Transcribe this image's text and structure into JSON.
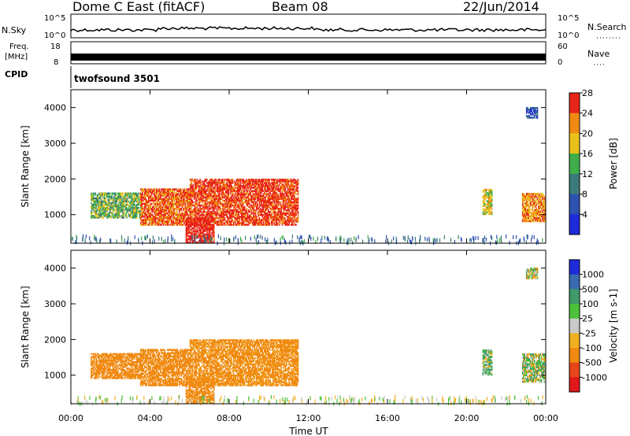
{
  "header": {
    "station": "Dome C East (fitACF)",
    "beam": "Beam 08",
    "date": "22/Jun/2014"
  },
  "noise_panel": {
    "left_label": "N.Sky",
    "right_label": "N.Search",
    "left_ticks": [
      "10^5",
      "10^0"
    ],
    "right_ticks": [
      "10^5",
      "10^0"
    ]
  },
  "freq_panel": {
    "left_label_line1": "Freq.",
    "left_label_line2": "[MHz]",
    "left_ticks": [
      "18",
      "8"
    ],
    "right_label": "Nave",
    "right_ticks": [
      "60",
      "0"
    ]
  },
  "cpid": {
    "label": "CPID",
    "value": "twofsound 3501"
  },
  "chart_data": [
    {
      "type": "heatmap",
      "title": "",
      "ylabel": "Slant Range [km]",
      "xlabel": "Time UT",
      "x_range_hours": [
        0,
        24
      ],
      "ylim": [
        200,
        4500
      ],
      "yticks": [
        "1000",
        "2000",
        "3000",
        "4000"
      ],
      "colorbar": {
        "label": "Power [dB]",
        "ticks": [
          "4",
          "8",
          "12",
          "16",
          "20",
          "24",
          "28"
        ],
        "colors": [
          "#1e2bd8",
          "#2e52b0",
          "#3b7a7a",
          "#3fae4a",
          "#e8c21a",
          "#f08a12",
          "#e8251a"
        ]
      },
      "echo_regions": [
        {
          "t_start": 1.0,
          "t_end": 3.5,
          "r_min": 900,
          "r_max": 1600,
          "value": 14
        },
        {
          "t_start": 3.5,
          "t_end": 6.0,
          "r_min": 700,
          "r_max": 1700,
          "value": 24
        },
        {
          "t_start": 6.0,
          "t_end": 11.5,
          "r_min": 700,
          "r_max": 2000,
          "value": 26
        },
        {
          "t_start": 5.8,
          "t_end": 7.2,
          "r_min": 200,
          "r_max": 900,
          "value": 28
        },
        {
          "t_start": 20.8,
          "t_end": 21.3,
          "r_min": 1000,
          "r_max": 1700,
          "value": 18
        },
        {
          "t_start": 22.8,
          "t_end": 24.0,
          "r_min": 800,
          "r_max": 1600,
          "value": 22
        },
        {
          "t_start": 23.0,
          "t_end": 23.6,
          "r_min": 3700,
          "r_max": 4000,
          "value": 6
        }
      ]
    },
    {
      "type": "heatmap",
      "title": "",
      "ylabel": "Slant Range [km]",
      "xlabel": "Time UT",
      "x_range_hours": [
        0,
        24
      ],
      "ylim": [
        200,
        4500
      ],
      "yticks": [
        "1000",
        "2000",
        "3000",
        "4000"
      ],
      "xticks": [
        "00:00",
        "04:00",
        "08:00",
        "12:00",
        "16:00",
        "20:00",
        "00:00"
      ],
      "colorbar": {
        "label": "Velocity [m s-1]",
        "ticks": [
          "1000",
          "500",
          "100",
          "25",
          "-25",
          "-100",
          "-500",
          "-1000"
        ],
        "colors": [
          "#1e2bd8",
          "#3a6bb0",
          "#3f9a6a",
          "#4cc23a",
          "#c9c9c9",
          "#f0b020",
          "#f08a12",
          "#e8451a",
          "#e01818"
        ]
      },
      "echo_regions": [
        {
          "t_start": 1.0,
          "t_end": 3.5,
          "r_min": 900,
          "r_max": 1600,
          "value": -300
        },
        {
          "t_start": 3.5,
          "t_end": 6.0,
          "r_min": 700,
          "r_max": 1700,
          "value": -300
        },
        {
          "t_start": 6.0,
          "t_end": 11.5,
          "r_min": 700,
          "r_max": 2000,
          "value": -250
        },
        {
          "t_start": 5.8,
          "t_end": 7.2,
          "r_min": 200,
          "r_max": 900,
          "value": -300
        },
        {
          "t_start": 20.8,
          "t_end": 21.3,
          "r_min": 1000,
          "r_max": 1700,
          "value": 100
        },
        {
          "t_start": 22.8,
          "t_end": 24.0,
          "r_min": 800,
          "r_max": 1600,
          "value": 50
        },
        {
          "t_start": 23.0,
          "t_end": 23.6,
          "r_min": 3700,
          "r_max": 4000,
          "value": 0
        }
      ]
    }
  ]
}
